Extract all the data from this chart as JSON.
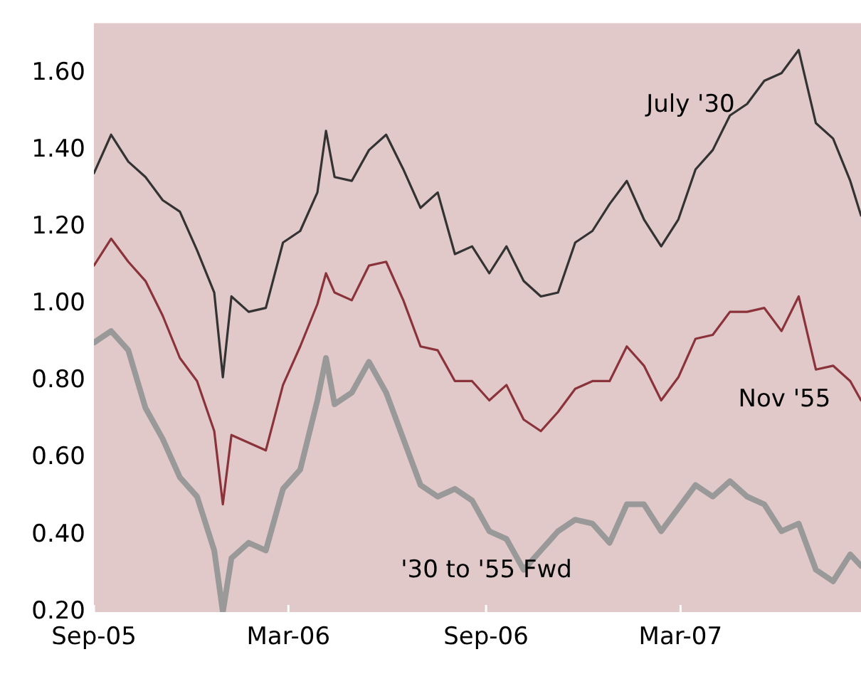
{
  "chart_data": {
    "type": "line",
    "x": [
      "2005-09-01",
      "2005-09-17",
      "2005-10-03",
      "2005-10-19",
      "2005-11-04",
      "2005-11-20",
      "2005-12-06",
      "2005-12-22",
      "2005-12-30",
      "2006-01-07",
      "2006-01-23",
      "2006-02-08",
      "2006-02-24",
      "2006-03-12",
      "2006-03-28",
      "2006-04-05",
      "2006-04-13",
      "2006-04-29",
      "2006-05-15",
      "2006-05-31",
      "2006-06-16",
      "2006-07-02",
      "2006-07-18",
      "2006-08-03",
      "2006-08-19",
      "2006-09-04",
      "2006-09-20",
      "2006-10-06",
      "2006-10-22",
      "2006-11-07",
      "2006-11-23",
      "2006-12-09",
      "2006-12-25",
      "2007-01-10",
      "2007-01-26",
      "2007-02-11",
      "2007-02-27",
      "2007-03-15",
      "2007-03-31",
      "2007-04-16",
      "2007-05-02",
      "2007-05-18",
      "2007-06-03",
      "2007-06-19",
      "2007-07-05",
      "2007-07-21",
      "2007-08-06",
      "2007-08-16"
    ],
    "series": [
      {
        "name": "July '30",
        "color": "#333333",
        "values": [
          1.34,
          1.44,
          1.37,
          1.33,
          1.27,
          1.24,
          1.14,
          1.03,
          0.81,
          1.02,
          0.98,
          0.99,
          1.16,
          1.19,
          1.29,
          1.45,
          1.33,
          1.32,
          1.4,
          1.44,
          1.35,
          1.25,
          1.29,
          1.13,
          1.15,
          1.08,
          1.15,
          1.06,
          1.02,
          1.03,
          1.16,
          1.19,
          1.26,
          1.32,
          1.22,
          1.15,
          1.22,
          1.35,
          1.4,
          1.49,
          1.52,
          1.58,
          1.6,
          1.66,
          1.47,
          1.43,
          1.32,
          1.23
        ]
      },
      {
        "name": "Nov '55",
        "color": "#8b333b",
        "values": [
          1.1,
          1.17,
          1.11,
          1.06,
          0.97,
          0.86,
          0.8,
          0.67,
          0.48,
          0.66,
          0.64,
          0.62,
          0.79,
          0.89,
          1.0,
          1.08,
          1.03,
          1.01,
          1.1,
          1.11,
          1.01,
          0.89,
          0.88,
          0.8,
          0.8,
          0.75,
          0.79,
          0.7,
          0.67,
          0.72,
          0.78,
          0.8,
          0.8,
          0.89,
          0.84,
          0.75,
          0.81,
          0.91,
          0.92,
          0.98,
          0.98,
          0.99,
          0.93,
          1.02,
          0.83,
          0.84,
          0.8,
          0.75
        ]
      },
      {
        "name": "'30 to '55 Fwd",
        "color": "#999999",
        "values": [
          0.9,
          0.93,
          0.88,
          0.73,
          0.65,
          0.55,
          0.5,
          0.36,
          0.2,
          0.34,
          0.38,
          0.36,
          0.52,
          0.57,
          0.75,
          0.86,
          0.74,
          0.77,
          0.85,
          0.77,
          0.65,
          0.53,
          0.5,
          0.52,
          0.49,
          0.41,
          0.39,
          0.31,
          0.36,
          0.41,
          0.44,
          0.43,
          0.38,
          0.48,
          0.48,
          0.41,
          0.47,
          0.53,
          0.5,
          0.54,
          0.5,
          0.48,
          0.41,
          0.43,
          0.31,
          0.28,
          0.35,
          0.32
        ]
      }
    ],
    "xlim": [
      "2005-09-01",
      "2007-08-16"
    ],
    "xticks": [
      {
        "value": "2005-09-01",
        "label": "Sep-05"
      },
      {
        "value": "2006-03-01",
        "label": "Mar-06"
      },
      {
        "value": "2006-09-01",
        "label": "Sep-06"
      },
      {
        "value": "2007-03-01",
        "label": "Mar-07"
      }
    ],
    "ylim": [
      0.2,
      1.73
    ],
    "yticks": [
      {
        "value": 0.2,
        "label": "0.20"
      },
      {
        "value": 0.4,
        "label": "0.40"
      },
      {
        "value": 0.6,
        "label": "0.60"
      },
      {
        "value": 0.8,
        "label": "0.80"
      },
      {
        "value": 1.0,
        "label": "1.00"
      },
      {
        "value": 1.2,
        "label": "1.20"
      },
      {
        "value": 1.4,
        "label": "1.40"
      },
      {
        "value": 1.6,
        "label": "1.60"
      }
    ],
    "grid": false,
    "legend": false,
    "marker": "none",
    "line_style": "solid"
  }
}
